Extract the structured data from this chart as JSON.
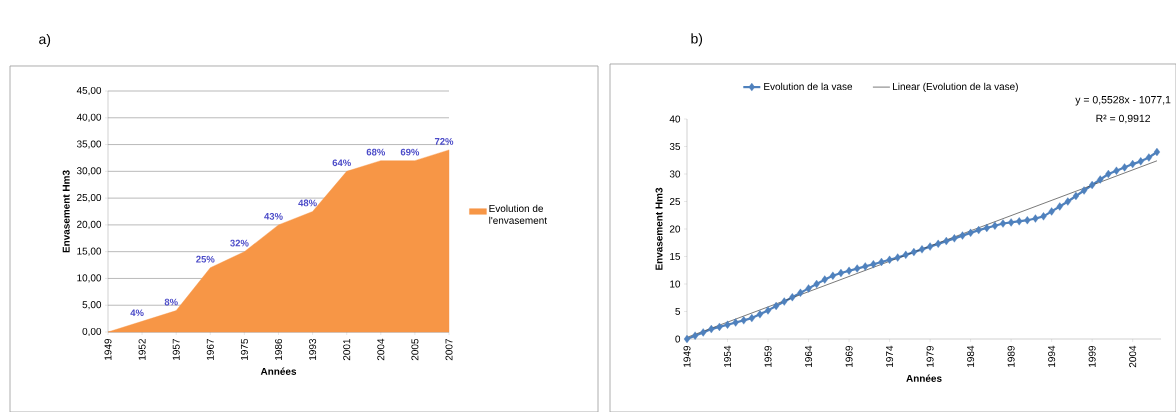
{
  "chart_data": [
    {
      "type": "area",
      "title": "a)",
      "xlabel": "Années",
      "ylabel": "Envasement Hm3",
      "categories": [
        "1949",
        "1952",
        "1957",
        "1967",
        "1975",
        "1986",
        "1993",
        "2001",
        "2004",
        "2005",
        "2007"
      ],
      "series": [
        {
          "name": "Evolution de l'envasement",
          "color": "#f79646",
          "values": [
            0,
            2,
            4,
            12,
            15,
            20,
            22.5,
            30,
            32,
            32,
            34
          ]
        }
      ],
      "annotations": [
        {
          "text": "4%",
          "x": "1952",
          "y": 2
        },
        {
          "text": "8%",
          "x": "1957",
          "y": 4
        },
        {
          "text": "25%",
          "x": "1967",
          "y": 12
        },
        {
          "text": "32%",
          "x": "1975",
          "y": 15
        },
        {
          "text": "43%",
          "x": "1986",
          "y": 20
        },
        {
          "text": "48%",
          "x": "1993",
          "y": 22.5
        },
        {
          "text": "64%",
          "x": "2001",
          "y": 30
        },
        {
          "text": "68%",
          "x": "2004",
          "y": 32
        },
        {
          "text": "69%",
          "x": "2005",
          "y": 32
        },
        {
          "text": "72%",
          "x": "2007",
          "y": 34
        }
      ],
      "ylim": [
        0,
        45
      ],
      "yticks": [
        {
          "value": 0,
          "label": "0,00"
        },
        {
          "value": 5,
          "label": "5,00"
        },
        {
          "value": 10,
          "label": "10,00"
        },
        {
          "value": 15,
          "label": "15,00"
        },
        {
          "value": 20,
          "label": "20,00"
        },
        {
          "value": 25,
          "label": "25,00"
        },
        {
          "value": 30,
          "label": "30,00"
        },
        {
          "value": 35,
          "label": "35,00"
        },
        {
          "value": 40,
          "label": "40,00"
        },
        {
          "value": 45,
          "label": "45,00"
        }
      ],
      "grid": "y",
      "legend": "right"
    },
    {
      "type": "line",
      "title": "b)",
      "xlabel": "Années",
      "ylabel": "Envasement Hm3",
      "x": [
        1949,
        1950,
        1951,
        1952,
        1953,
        1954,
        1955,
        1956,
        1957,
        1958,
        1959,
        1960,
        1961,
        1962,
        1963,
        1964,
        1965,
        1966,
        1967,
        1968,
        1969,
        1970,
        1971,
        1972,
        1973,
        1974,
        1975,
        1976,
        1977,
        1978,
        1979,
        1980,
        1981,
        1982,
        1983,
        1984,
        1985,
        1986,
        1987,
        1988,
        1989,
        1990,
        1991,
        1992,
        1993,
        1994,
        1995,
        1996,
        1997,
        1998,
        1999,
        2000,
        2001,
        2002,
        2003,
        2004,
        2005,
        2006,
        2007
      ],
      "series": [
        {
          "name": "Evolution de la vase",
          "color": "#4f81bd",
          "values": [
            0,
            0.6,
            1.2,
            1.8,
            2.2,
            2.6,
            3.0,
            3.4,
            3.8,
            4.5,
            5.2,
            6.0,
            6.8,
            7.6,
            8.4,
            9.2,
            10.0,
            10.8,
            11.5,
            12.0,
            12.4,
            12.8,
            13.2,
            13.6,
            14.0,
            14.4,
            14.8,
            15.3,
            15.8,
            16.3,
            16.8,
            17.3,
            17.8,
            18.3,
            18.8,
            19.3,
            19.8,
            20.2,
            20.6,
            21.0,
            21.2,
            21.4,
            21.6,
            21.9,
            22.3,
            23.2,
            24.1,
            25.0,
            26.0,
            27.0,
            28.0,
            29.0,
            30.0,
            30.6,
            31.2,
            31.8,
            32.3,
            33.0,
            34.0
          ]
        },
        {
          "name": "Linear (Evolution de la vase)",
          "color": "#404040",
          "type": "line",
          "marker": "none",
          "x": [
            1949,
            2007
          ],
          "values": [
            0.3,
            32.4
          ]
        }
      ],
      "xlim": [
        1949,
        2007.5
      ],
      "xticks": [
        1949,
        1954,
        1959,
        1964,
        1969,
        1974,
        1979,
        1984,
        1989,
        1994,
        1999,
        2004
      ],
      "ylim": [
        0,
        40
      ],
      "yticks": [
        0,
        5,
        10,
        15,
        20,
        25,
        30,
        35,
        40
      ],
      "marker": "diamond",
      "line_style": "solid",
      "legend": "top",
      "annotations": [
        "y = 0,5528x - 1077,1",
        "R² = 0,9912"
      ]
    }
  ]
}
